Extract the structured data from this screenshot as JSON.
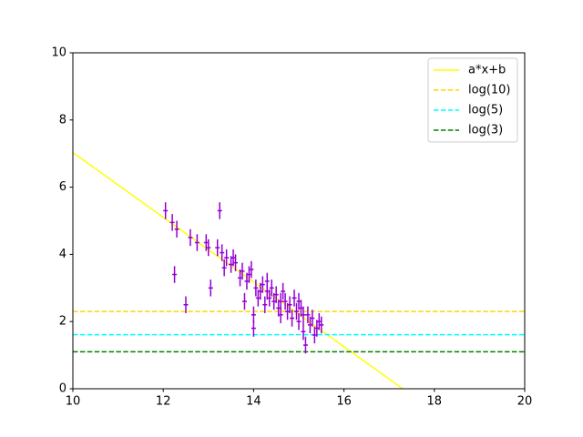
{
  "chart_data": {
    "type": "scatter",
    "xlim": [
      10,
      20
    ],
    "ylim": [
      0,
      10
    ],
    "xticks": [
      10,
      12,
      14,
      16,
      18,
      20
    ],
    "yticks": [
      0,
      2,
      4,
      6,
      8,
      10
    ],
    "legend": "upper right",
    "points": {
      "color": "#9400d3",
      "x": [
        12.05,
        12.2,
        12.3,
        12.25,
        12.5,
        12.6,
        12.75,
        12.95,
        13.0,
        13.05,
        13.2,
        13.25,
        13.3,
        13.35,
        13.4,
        13.5,
        13.55,
        13.6,
        13.7,
        13.75,
        13.8,
        13.85,
        13.9,
        13.95,
        14.0,
        14.0,
        14.05,
        14.1,
        14.15,
        14.2,
        14.25,
        14.3,
        14.35,
        14.4,
        14.45,
        14.5,
        14.55,
        14.6,
        14.65,
        14.7,
        14.75,
        14.8,
        14.85,
        14.9,
        14.95,
        15.0,
        15.05,
        15.1,
        15.15,
        15.2,
        15.25,
        15.3,
        15.35,
        15.4,
        15.45,
        15.5,
        14.3,
        14.6,
        15.0,
        15.1
      ],
      "y": [
        5.3,
        4.95,
        4.75,
        3.4,
        2.5,
        4.5,
        4.35,
        4.35,
        4.2,
        3.0,
        4.2,
        5.3,
        4.05,
        3.6,
        3.9,
        3.7,
        3.9,
        3.75,
        3.3,
        3.5,
        2.6,
        3.2,
        3.4,
        3.55,
        2.2,
        1.8,
        3.0,
        2.7,
        2.9,
        3.1,
        2.5,
        2.9,
        2.7,
        3.0,
        2.6,
        2.8,
        2.4,
        2.2,
        2.9,
        2.6,
        2.3,
        2.5,
        2.1,
        2.7,
        2.3,
        2.0,
        2.4,
        1.7,
        1.3,
        2.2,
        1.9,
        2.1,
        1.6,
        1.8,
        2.0,
        1.9,
        3.2,
        2.6,
        2.6,
        2.2
      ],
      "xerr": [
        0.05,
        0.05,
        0.05,
        0.05,
        0.05,
        0.05,
        0.05,
        0.05,
        0.05,
        0.05,
        0.05,
        0.05,
        0.05,
        0.05,
        0.05,
        0.05,
        0.05,
        0.05,
        0.05,
        0.05,
        0.05,
        0.05,
        0.05,
        0.05,
        0.05,
        0.05,
        0.05,
        0.05,
        0.05,
        0.05,
        0.05,
        0.05,
        0.05,
        0.05,
        0.05,
        0.05,
        0.05,
        0.05,
        0.05,
        0.05,
        0.05,
        0.05,
        0.05,
        0.05,
        0.05,
        0.05,
        0.05,
        0.05,
        0.05,
        0.05,
        0.05,
        0.05,
        0.05,
        0.05,
        0.05,
        0.05,
        0.05,
        0.05,
        0.05,
        0.05
      ],
      "yerr": [
        0.25,
        0.25,
        0.25,
        0.25,
        0.25,
        0.25,
        0.25,
        0.25,
        0.25,
        0.25,
        0.25,
        0.25,
        0.25,
        0.25,
        0.25,
        0.25,
        0.25,
        0.25,
        0.25,
        0.25,
        0.25,
        0.25,
        0.25,
        0.25,
        0.25,
        0.25,
        0.25,
        0.25,
        0.25,
        0.25,
        0.25,
        0.25,
        0.25,
        0.25,
        0.25,
        0.25,
        0.25,
        0.25,
        0.25,
        0.25,
        0.25,
        0.25,
        0.25,
        0.25,
        0.25,
        0.25,
        0.25,
        0.25,
        0.25,
        0.25,
        0.25,
        0.25,
        0.25,
        0.25,
        0.25,
        0.25,
        0.25,
        0.25,
        0.25,
        0.25
      ]
    },
    "series": [
      {
        "name": "a*x+b",
        "color": "#ffff00",
        "dashed": false,
        "x": [
          10,
          17.3
        ],
        "values": [
          7.03,
          0
        ]
      },
      {
        "name": "log(10)",
        "color": "#ffd700",
        "dashed": true,
        "x": [
          10,
          20
        ],
        "values": [
          2.3,
          2.3
        ]
      },
      {
        "name": "log(5)",
        "color": "#00ffff",
        "dashed": true,
        "x": [
          10,
          20
        ],
        "values": [
          1.61,
          1.61
        ]
      },
      {
        "name": "log(3)",
        "color": "#008000",
        "dashed": true,
        "x": [
          10,
          20
        ],
        "values": [
          1.1,
          1.1
        ]
      }
    ]
  }
}
